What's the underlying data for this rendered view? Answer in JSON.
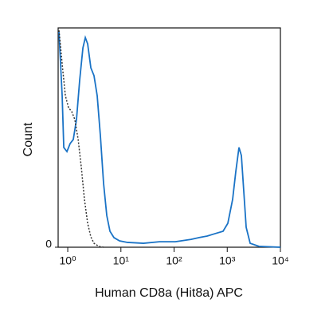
{
  "chart_data": {
    "type": "line",
    "xlabel": "Human CD8a (Hit8a) APC",
    "ylabel": "Count",
    "xscale": "log",
    "xlim": [
      0.66,
      10000
    ],
    "ylim": [
      0,
      100
    ],
    "xticks": [
      {
        "value": 1,
        "label": "10⁰"
      },
      {
        "value": 10,
        "label": "10¹"
      },
      {
        "value": 100,
        "label": "10²"
      },
      {
        "value": 1000,
        "label": "10³"
      },
      {
        "value": 10000,
        "label": "10⁴"
      }
    ],
    "yticks": [
      0
    ],
    "series": [
      {
        "color": "#1a73c6",
        "line_style": "solid",
        "x": [
          0.684,
          0.785,
          0.842,
          0.966,
          1.11,
          1.27,
          1.46,
          1.68,
          1.93,
          2.14,
          2.37,
          2.72,
          3.12,
          3.58,
          4.11,
          4.72,
          5.42,
          6.22,
          7.39,
          9.4,
          13.3,
          26.5,
          52.8,
          105,
          210,
          297,
          419,
          591,
          834,
          1026,
          1262,
          1449,
          1663,
          1845,
          2047,
          2270,
          2698,
          3945,
          10000
        ],
        "values": [
          98.2,
          69.1,
          45.5,
          43.6,
          47.3,
          49.1,
          58.2,
          76.4,
          90.9,
          95.6,
          92.7,
          81.8,
          78.2,
          69.1,
          50.9,
          29.1,
          14.5,
          7.3,
          4.4,
          2.9,
          2.2,
          1.8,
          2.5,
          2.5,
          3.6,
          4.4,
          5.1,
          6.2,
          7.3,
          10.9,
          21.8,
          34.5,
          45.5,
          41.8,
          25.5,
          9.1,
          1.8,
          0.4,
          0
        ]
      },
      {
        "color": "#333333",
        "line_style": "dotted",
        "x": [
          0.684,
          0.785,
          0.902,
          1.035,
          1.19,
          1.36,
          1.57,
          1.8,
          2.06,
          2.37,
          2.72,
          3.12,
          3.84,
          4.72
        ],
        "values": [
          98.9,
          83.6,
          69.1,
          63.6,
          61.8,
          58.2,
          49.1,
          36.4,
          21.8,
          10.9,
          4.7,
          1.8,
          0.4,
          0
        ]
      }
    ]
  }
}
